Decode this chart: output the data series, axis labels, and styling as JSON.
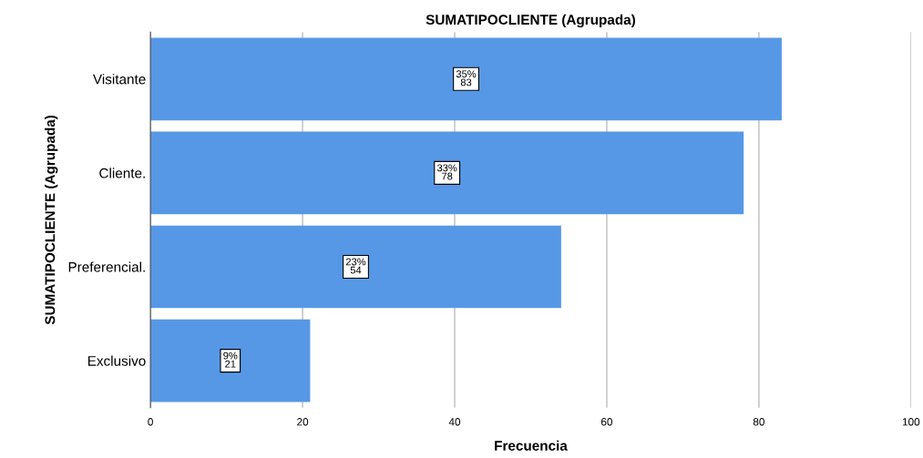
{
  "chart_data": {
    "type": "bar",
    "orientation": "horizontal",
    "title": "SUMATIPOCLIENTE (Agrupada)",
    "xlabel": "Frecuencia",
    "ylabel": "SUMATIPOCLIENTE (Agrupada)",
    "categories": [
      "Visitante",
      "Cliente.",
      "Preferencial.",
      "Exclusivo"
    ],
    "values": [
      83,
      78,
      54,
      21
    ],
    "color": "#5698e6",
    "value_labels": [
      "35%\n83",
      "33%\n78",
      "23%\n54",
      "9%\n21"
    ],
    "xlim": [
      0,
      100
    ],
    "xticks": [
      0,
      20,
      40,
      60,
      80,
      100
    ],
    "grid": "x"
  }
}
